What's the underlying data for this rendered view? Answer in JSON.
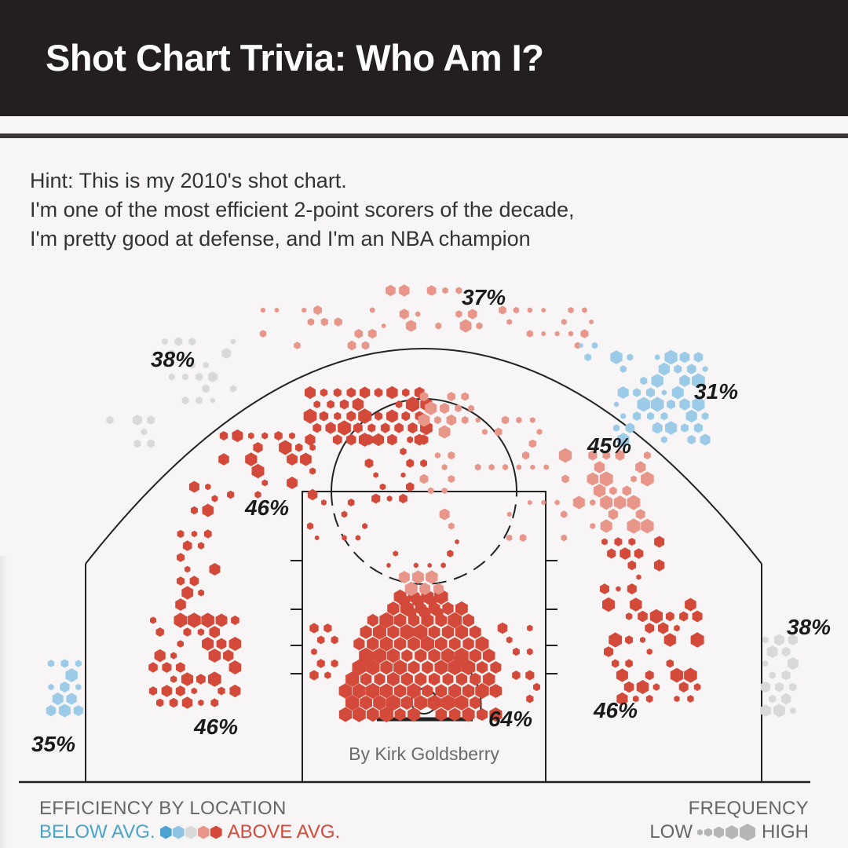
{
  "header": {
    "title": "Shot Chart Trivia: Who Am I?"
  },
  "hint": {
    "lines": [
      "Hint: This is my 2010's shot chart.",
      "I'm one of the most efficient 2-point scorers of the decade,",
      "I'm pretty good at defense, and I'm an NBA champion"
    ]
  },
  "credit": "By Kirk Goldsberry",
  "legend": {
    "efficiency_title": "EFFICIENCY BY LOCATION",
    "below_label": "BELOW AVG.",
    "above_label": "ABOVE AVG.",
    "efficiency_colors": [
      "#4aa3d0",
      "#8ec3e3",
      "#d9d9d9",
      "#e8968a",
      "#d44a3a"
    ],
    "frequency_title": "FREQUENCY",
    "low_label": "LOW",
    "high_label": "HIGH"
  },
  "colors": {
    "above_avg": "#d44a3a",
    "slightly_above": "#e8968a",
    "average": "#d9d9d9",
    "below_avg": "#9ccbe8"
  },
  "chart_data": {
    "type": "heatmap",
    "description_type": "basketball shot chart (hexbin)",
    "zones": [
      {
        "zone": "left corner three",
        "fg_pct": 35,
        "label": "35%",
        "efficiency": "below"
      },
      {
        "zone": "left wing three",
        "fg_pct": 38,
        "label": "38%",
        "efficiency": "average"
      },
      {
        "zone": "top of key three",
        "fg_pct": 37,
        "label": "37%",
        "efficiency": "slightly_above"
      },
      {
        "zone": "right wing three",
        "fg_pct": 31,
        "label": "31%",
        "efficiency": "below"
      },
      {
        "zone": "right corner three",
        "fg_pct": 38,
        "label": "38%",
        "efficiency": "average"
      },
      {
        "zone": "left baseline mid-range",
        "fg_pct": 46,
        "label": "46%",
        "efficiency": "above"
      },
      {
        "zone": "left elbow mid-range",
        "fg_pct": 46,
        "label": "46%",
        "efficiency": "above"
      },
      {
        "zone": "right elbow mid-range",
        "fg_pct": 45,
        "label": "45%",
        "efficiency": "slightly_above"
      },
      {
        "zone": "right baseline mid-range",
        "fg_pct": 46,
        "label": "46%",
        "efficiency": "above"
      },
      {
        "zone": "restricted area / paint",
        "fg_pct": 64,
        "label": "64%",
        "efficiency": "above"
      }
    ]
  }
}
